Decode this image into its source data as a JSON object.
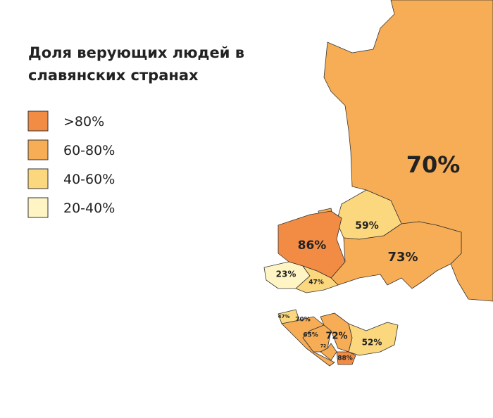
{
  "title": [
    "Доля верующих людей в",
    "славянских странах"
  ],
  "legend": [
    {
      "label": ">80%",
      "color": "#f28c45"
    },
    {
      "label": "60-80%",
      "color": "#f7ad55"
    },
    {
      "label": "40-60%",
      "color": "#fbd77e"
    },
    {
      "label": "20-40%",
      "color": "#fff5c4"
    }
  ],
  "regions": [
    {
      "label": "70%"
    },
    {
      "label": "59%"
    },
    {
      "label": "86%"
    },
    {
      "label": "73%"
    },
    {
      "label": "23%"
    },
    {
      "label": "47%"
    },
    {
      "label": "47%"
    },
    {
      "label": "70%"
    },
    {
      "label": "65%"
    },
    {
      "label": "72%"
    },
    {
      "label": "72"
    },
    {
      "label": "52%"
    },
    {
      "label": "88%"
    }
  ]
}
